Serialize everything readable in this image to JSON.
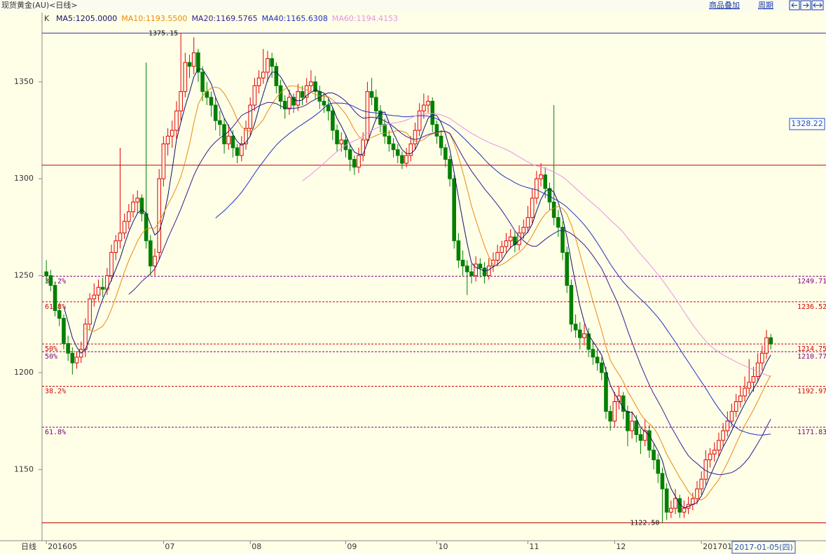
{
  "header": {
    "title": "现货黄金(AU)<日线>",
    "links": [
      "商品叠加",
      "周期"
    ]
  },
  "chart_data": {
    "type": "candlestick",
    "indicator": "K",
    "ma": [
      {
        "period": 5,
        "label": "MA5:1205.0000",
        "color": "#10106a"
      },
      {
        "period": 10,
        "label": "MA10:1193.5500",
        "color": "#e88a10"
      },
      {
        "period": 20,
        "label": "MA20:1169.5765",
        "color": "#3a1a90"
      },
      {
        "period": 40,
        "label": "MA40:1165.6308",
        "color": "#2030c0"
      },
      {
        "period": 60,
        "label": "MA60:1194.4153",
        "color": "#e890e8"
      }
    ],
    "x_label": "日线",
    "cursor_date": "2017-01-05(四)",
    "xlim": [
      -1,
      171
    ],
    "xticks": [
      {
        "value": 0,
        "label": "201605"
      },
      {
        "value": 27,
        "label": "07"
      },
      {
        "value": 47,
        "label": "08"
      },
      {
        "value": 69,
        "label": "09"
      },
      {
        "value": 90,
        "label": "10"
      },
      {
        "value": 111,
        "label": "11"
      },
      {
        "value": 131,
        "label": "12"
      },
      {
        "value": 151,
        "label": "201701"
      }
    ],
    "ylim": [
      1114,
      1385
    ],
    "yticks": [
      1150,
      1200,
      1250,
      1300,
      1350
    ],
    "up_color": "#e00000",
    "down_color": "#008000",
    "candles": [
      [
        1252,
        1258,
        1246,
        1250
      ],
      [
        1250,
        1253,
        1242,
        1245
      ],
      [
        1245,
        1247,
        1229,
        1232
      ],
      [
        1232,
        1236,
        1224,
        1228
      ],
      [
        1228,
        1230,
        1212,
        1215
      ],
      [
        1215,
        1219,
        1206,
        1210
      ],
      [
        1210,
        1213,
        1199,
        1205
      ],
      [
        1205,
        1211,
        1202,
        1208
      ],
      [
        1208,
        1216,
        1205,
        1212
      ],
      [
        1212,
        1228,
        1208,
        1225
      ],
      [
        1225,
        1241,
        1222,
        1238
      ],
      [
        1238,
        1246,
        1234,
        1240
      ],
      [
        1240,
        1248,
        1237,
        1244
      ],
      [
        1244,
        1249,
        1239,
        1243
      ],
      [
        1243,
        1254,
        1240,
        1250
      ],
      [
        1250,
        1266,
        1247,
        1262
      ],
      [
        1262,
        1271,
        1258,
        1268
      ],
      [
        1268,
        1316,
        1264,
        1272
      ],
      [
        1272,
        1282,
        1269,
        1278
      ],
      [
        1278,
        1287,
        1274,
        1283
      ],
      [
        1283,
        1292,
        1280,
        1288
      ],
      [
        1288,
        1294,
        1282,
        1290
      ],
      [
        1290,
        1292,
        1278,
        1282
      ],
      [
        1282,
        1360,
        1264,
        1268
      ],
      [
        1268,
        1271,
        1250,
        1255
      ],
      [
        1255,
        1264,
        1250,
        1260
      ],
      [
        1262,
        1305,
        1258,
        1300
      ],
      [
        1300,
        1322,
        1296,
        1318
      ],
      [
        1318,
        1326,
        1312,
        1322
      ],
      [
        1322,
        1330,
        1316,
        1325
      ],
      [
        1325,
        1340,
        1320,
        1335
      ],
      [
        1335,
        1375.15,
        1330,
        1345
      ],
      [
        1345,
        1365,
        1342,
        1360
      ],
      [
        1360,
        1364,
        1352,
        1358
      ],
      [
        1358,
        1373,
        1354,
        1365
      ],
      [
        1365,
        1367,
        1350,
        1355
      ],
      [
        1355,
        1358,
        1340,
        1345
      ],
      [
        1345,
        1350,
        1338,
        1342
      ],
      [
        1342,
        1345,
        1332,
        1338
      ],
      [
        1338,
        1342,
        1325,
        1330
      ],
      [
        1330,
        1335,
        1322,
        1328
      ],
      [
        1328,
        1331,
        1313,
        1318
      ],
      [
        1318,
        1328,
        1315,
        1322
      ],
      [
        1322,
        1325,
        1311,
        1316
      ],
      [
        1316,
        1318,
        1308,
        1312
      ],
      [
        1312,
        1322,
        1309,
        1318
      ],
      [
        1318,
        1330,
        1315,
        1326
      ],
      [
        1326,
        1342,
        1322,
        1338
      ],
      [
        1338,
        1352,
        1335,
        1348
      ],
      [
        1348,
        1356,
        1344,
        1352
      ],
      [
        1352,
        1367,
        1349,
        1355
      ],
      [
        1355,
        1366,
        1350,
        1362
      ],
      [
        1362,
        1365,
        1352,
        1358
      ],
      [
        1358,
        1360,
        1344,
        1348
      ],
      [
        1348,
        1351,
        1336,
        1340
      ],
      [
        1340,
        1343,
        1331,
        1336
      ],
      [
        1336,
        1346,
        1333,
        1342
      ],
      [
        1342,
        1344,
        1334,
        1338
      ],
      [
        1338,
        1349,
        1335,
        1345
      ],
      [
        1345,
        1348,
        1338,
        1342
      ],
      [
        1342,
        1352,
        1339,
        1348
      ],
      [
        1348,
        1356,
        1345,
        1350
      ],
      [
        1350,
        1353,
        1341,
        1345
      ],
      [
        1345,
        1348,
        1336,
        1340
      ],
      [
        1340,
        1344,
        1334,
        1338
      ],
      [
        1338,
        1341,
        1330,
        1335
      ],
      [
        1335,
        1337,
        1320,
        1325
      ],
      [
        1325,
        1328,
        1314,
        1318
      ],
      [
        1318,
        1324,
        1314,
        1320
      ],
      [
        1320,
        1323,
        1311,
        1315
      ],
      [
        1315,
        1318,
        1304,
        1310
      ],
      [
        1310,
        1312,
        1302,
        1306
      ],
      [
        1306,
        1316,
        1303,
        1312
      ],
      [
        1312,
        1324,
        1309,
        1320
      ],
      [
        1320,
        1350,
        1318,
        1345
      ],
      [
        1345,
        1352,
        1338,
        1342
      ],
      [
        1342,
        1346,
        1331,
        1335
      ],
      [
        1335,
        1338,
        1324,
        1328
      ],
      [
        1328,
        1331,
        1318,
        1322
      ],
      [
        1322,
        1325,
        1314,
        1318
      ],
      [
        1318,
        1321,
        1311,
        1315
      ],
      [
        1315,
        1318,
        1308,
        1312
      ],
      [
        1312,
        1314,
        1305,
        1308
      ],
      [
        1308,
        1316,
        1306,
        1312
      ],
      [
        1312,
        1322,
        1309,
        1318
      ],
      [
        1318,
        1329,
        1315,
        1325
      ],
      [
        1325,
        1339,
        1322,
        1335
      ],
      [
        1335,
        1344,
        1331,
        1338
      ],
      [
        1338,
        1343,
        1334,
        1340
      ],
      [
        1340,
        1342,
        1324,
        1328
      ],
      [
        1328,
        1330,
        1318,
        1322
      ],
      [
        1322,
        1325,
        1312,
        1316
      ],
      [
        1316,
        1318,
        1306,
        1310
      ],
      [
        1310,
        1312,
        1296,
        1300
      ],
      [
        1300,
        1302,
        1264,
        1268
      ],
      [
        1268,
        1272,
        1254,
        1258
      ],
      [
        1258,
        1263,
        1250,
        1255
      ],
      [
        1255,
        1258,
        1240,
        1252
      ],
      [
        1252,
        1256,
        1246,
        1250
      ],
      [
        1250,
        1260,
        1247,
        1256
      ],
      [
        1256,
        1259,
        1249,
        1254
      ],
      [
        1254,
        1257,
        1246,
        1250
      ],
      [
        1250,
        1259,
        1248,
        1255
      ],
      [
        1255,
        1262,
        1252,
        1258
      ],
      [
        1258,
        1266,
        1255,
        1262
      ],
      [
        1262,
        1268,
        1259,
        1265
      ],
      [
        1265,
        1272,
        1262,
        1268
      ],
      [
        1268,
        1274,
        1264,
        1270
      ],
      [
        1270,
        1273,
        1262,
        1266
      ],
      [
        1266,
        1276,
        1263,
        1272
      ],
      [
        1272,
        1279,
        1269,
        1275
      ],
      [
        1275,
        1286,
        1272,
        1280
      ],
      [
        1280,
        1295,
        1277,
        1290
      ],
      [
        1290,
        1304,
        1287,
        1300
      ],
      [
        1300,
        1308,
        1296,
        1302
      ],
      [
        1302,
        1306,
        1290,
        1295
      ],
      [
        1295,
        1298,
        1284,
        1288
      ],
      [
        1288,
        1338,
        1276,
        1280
      ],
      [
        1280,
        1284,
        1270,
        1275
      ],
      [
        1275,
        1278,
        1258,
        1262
      ],
      [
        1262,
        1265,
        1241,
        1245
      ],
      [
        1245,
        1248,
        1221,
        1225
      ],
      [
        1225,
        1230,
        1218,
        1222
      ],
      [
        1222,
        1226,
        1212,
        1218
      ],
      [
        1218,
        1225,
        1214,
        1220
      ],
      [
        1220,
        1223,
        1208,
        1212
      ],
      [
        1212,
        1216,
        1204,
        1208
      ],
      [
        1208,
        1212,
        1201,
        1205
      ],
      [
        1205,
        1208,
        1196,
        1200
      ],
      [
        1200,
        1203,
        1176,
        1180
      ],
      [
        1180,
        1183,
        1170,
        1175
      ],
      [
        1175,
        1190,
        1172,
        1185
      ],
      [
        1185,
        1193,
        1181,
        1188
      ],
      [
        1188,
        1190,
        1176,
        1180
      ],
      [
        1180,
        1183,
        1162,
        1170
      ],
      [
        1170,
        1180,
        1166,
        1175
      ],
      [
        1175,
        1178,
        1164,
        1168
      ],
      [
        1168,
        1171,
        1158,
        1165
      ],
      [
        1165,
        1176,
        1162,
        1170
      ],
      [
        1170,
        1173,
        1156,
        1160
      ],
      [
        1160,
        1163,
        1150,
        1155
      ],
      [
        1155,
        1158,
        1143,
        1148
      ],
      [
        1148,
        1151,
        1122.5,
        1140
      ],
      [
        1140,
        1143,
        1124,
        1128
      ],
      [
        1128,
        1134,
        1125,
        1130
      ],
      [
        1130,
        1140,
        1127,
        1135
      ],
      [
        1135,
        1137,
        1125,
        1128
      ],
      [
        1128,
        1134,
        1125,
        1130
      ],
      [
        1130,
        1136,
        1127,
        1132
      ],
      [
        1132,
        1138,
        1129,
        1135
      ],
      [
        1135,
        1144,
        1132,
        1140
      ],
      [
        1140,
        1149,
        1137,
        1145
      ],
      [
        1145,
        1160,
        1142,
        1155
      ],
      [
        1155,
        1161,
        1151,
        1158
      ],
      [
        1158,
        1164,
        1154,
        1160
      ],
      [
        1160,
        1169,
        1157,
        1165
      ],
      [
        1165,
        1174,
        1162,
        1170
      ],
      [
        1170,
        1180,
        1167,
        1175
      ],
      [
        1175,
        1184,
        1172,
        1180
      ],
      [
        1180,
        1189,
        1177,
        1185
      ],
      [
        1185,
        1193,
        1182,
        1188
      ],
      [
        1188,
        1198,
        1185,
        1192
      ],
      [
        1192,
        1207,
        1189,
        1195
      ],
      [
        1195,
        1203,
        1190,
        1198
      ],
      [
        1198,
        1210,
        1195,
        1205
      ],
      [
        1205,
        1214,
        1201,
        1210
      ],
      [
        1210,
        1222,
        1207,
        1218
      ],
      [
        1218,
        1220,
        1212,
        1214.75
      ]
    ],
    "hlines": [
      {
        "value": 1375.15,
        "color": "#3030a0"
      },
      {
        "value": 1122.5,
        "label": "1122.50",
        "color": "#c00000"
      },
      {
        "value": 1307,
        "color": "#c00000"
      }
    ],
    "fib_lines": [
      {
        "value": 1249.71,
        "color": "#800080",
        "level": "38.2%"
      },
      {
        "value": 1236.52,
        "color": "#d00000",
        "level": "61.8%"
      },
      {
        "value": 1214.75,
        "color": "#d00000",
        "level": "50%"
      },
      {
        "value": 1210.77,
        "color": "#800080",
        "level": "50%"
      },
      {
        "value": 1192.97,
        "color": "#d00000",
        "level": "38.2%"
      },
      {
        "value": 1171.83,
        "color": "#800080",
        "level": "61.8%"
      }
    ],
    "price_tag": 1328.22
  }
}
